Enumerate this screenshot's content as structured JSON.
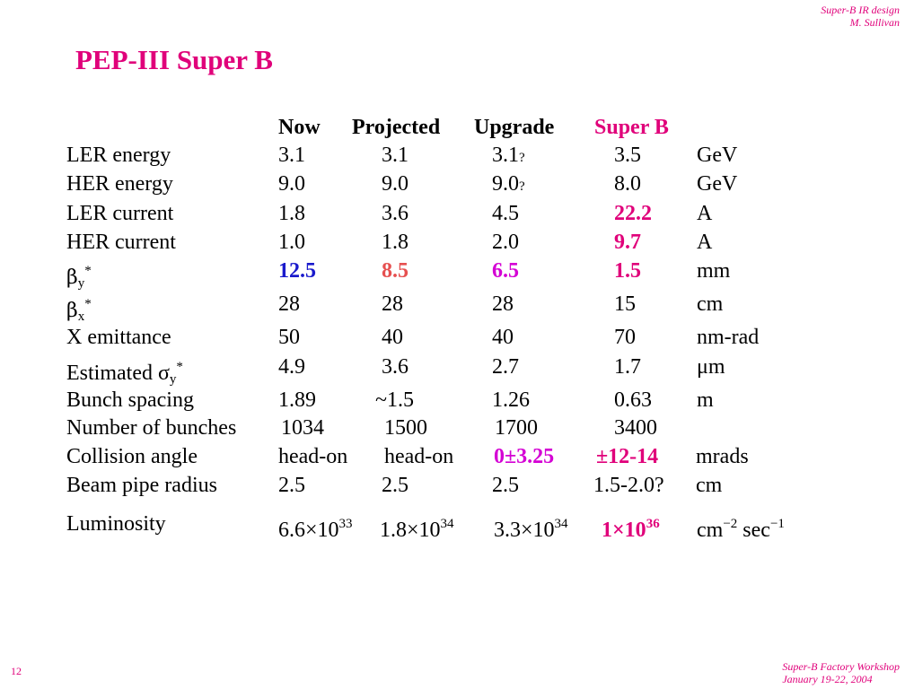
{
  "header": {
    "line1": "Super-B IR design",
    "line2": "M. Sullivan"
  },
  "title": "PEP-III Super B",
  "columns": {
    "now": "Now",
    "projected": "Projected",
    "upgrade": "Upgrade",
    "superb": "Super B"
  },
  "rows": {
    "ler_energy": {
      "label": "LER energy",
      "now": "3.1",
      "projected": "3.1",
      "upgrade": "3.1",
      "upgrade_q": "?",
      "superb": "3.5",
      "unit": "GeV"
    },
    "her_energy": {
      "label": "HER energy",
      "now": "9.0",
      "projected": "9.0",
      "upgrade": "9.0",
      "upgrade_q": "?",
      "superb": "8.0",
      "unit": "GeV"
    },
    "ler_current": {
      "label": "LER current",
      "now": "1.8",
      "projected": "3.6",
      "upgrade": "4.5",
      "superb": "22.2",
      "unit": "A"
    },
    "her_current": {
      "label": "HER current",
      "now": "1.0",
      "projected": "1.8",
      "upgrade": "2.0",
      "superb": "9.7",
      "unit": "A"
    },
    "beta_y": {
      "label": "β",
      "sub": "y",
      "sup": "*",
      "now": "12.5",
      "projected": "8.5",
      "upgrade": "6.5",
      "superb": "1.5",
      "unit": "mm"
    },
    "beta_x": {
      "label": "β",
      "sub": "x",
      "sup": "*",
      "now": "28",
      "projected": "28",
      "upgrade": "28",
      "superb": "15",
      "unit": "cm"
    },
    "x_emittance": {
      "label": "X emittance",
      "now": "50",
      "projected": "40",
      "upgrade": "40",
      "superb": "70",
      "unit": "nm-rad"
    },
    "sigma_y": {
      "label": "Estimated σ",
      "sub": "y",
      "sup": "*",
      "now": "4.9",
      "projected": "3.6",
      "upgrade": "2.7",
      "superb": "1.7",
      "unit": "μm"
    },
    "bunch_spacing": {
      "label": "Bunch spacing",
      "now": "1.89",
      "projected": "~1.5",
      "upgrade": "1.26",
      "superb": "0.63",
      "unit": "m"
    },
    "n_bunches": {
      "label": "Number of bunches",
      "now": "1034",
      "projected": "1500",
      "upgrade": "1700",
      "superb": "3400",
      "unit": ""
    },
    "collision_angle": {
      "label": "Collision angle",
      "now": "head-on",
      "projected": "head-on",
      "upgrade": "0±3.25",
      "superb": "±12-14",
      "unit": "mrads"
    },
    "beam_pipe": {
      "label": "Beam pipe radius",
      "now": "2.5",
      "projected": "2.5",
      "upgrade": "2.5",
      "superb": "1.5-2.0?",
      "unit": "cm"
    },
    "luminosity": {
      "label": "Luminosity",
      "now": "6.6×10",
      "now_exp": "33",
      "projected": "1.8×10",
      "projected_exp": "34",
      "upgrade": "3.3×10",
      "upgrade_exp": "34",
      "superb": "1×10",
      "superb_exp": "36",
      "unit_a": "cm",
      "unit_a_exp": "−2",
      "unit_b": " sec",
      "unit_b_exp": "−1"
    }
  },
  "footer": {
    "line1": "Super-B Factory Workshop",
    "line2": "January 19-22, 2004"
  },
  "page_number": "12",
  "colors": {
    "accent": "#e0007a",
    "blue": "#1a1acc",
    "red": "#e65050",
    "magenta": "#d400d4"
  }
}
